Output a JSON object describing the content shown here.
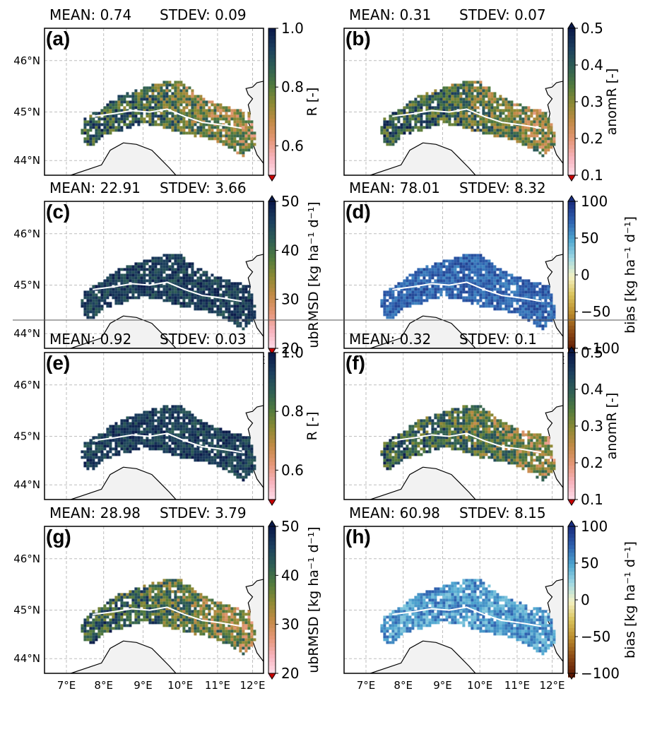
{
  "panels": [
    {
      "letter": "(a)",
      "mean_label": "MEAN: 0.74",
      "stdev_label": "STDEV: 0.09",
      "mean": 0.74,
      "stdev": 0.09,
      "cbar": "R",
      "tone": "mixed"
    },
    {
      "letter": "(b)",
      "mean_label": "MEAN: 0.31",
      "stdev_label": "STDEV: 0.07",
      "mean": 0.31,
      "stdev": 0.07,
      "cbar": "anomR",
      "tone": "mixed"
    },
    {
      "letter": "(c)",
      "mean_label": "MEAN: 22.91",
      "stdev_label": "STDEV: 3.66",
      "mean": 22.91,
      "stdev": 3.66,
      "cbar": "ubRMSD",
      "tone": "dark"
    },
    {
      "letter": "(d)",
      "mean_label": "MEAN: 78.01",
      "stdev_label": "STDEV: 8.32",
      "mean": 78.01,
      "stdev": 8.32,
      "cbar": "bias",
      "tone": "blue"
    },
    {
      "letter": "(e)",
      "mean_label": "MEAN: 0.92",
      "stdev_label": "STDEV: 0.03",
      "mean": 0.92,
      "stdev": 0.03,
      "cbar": "R",
      "tone": "dark"
    },
    {
      "letter": "(f)",
      "mean_label": "MEAN: 0.32",
      "stdev_label": "STDEV: 0.1",
      "mean": 0.32,
      "stdev": 0.1,
      "cbar": "anomR",
      "tone": "mixed"
    },
    {
      "letter": "(g)",
      "mean_label": "MEAN: 28.98",
      "stdev_label": "STDEV: 3.79",
      "mean": 28.98,
      "stdev": 3.79,
      "cbar": "ubRMSD",
      "tone": "mixed"
    },
    {
      "letter": "(h)",
      "mean_label": "MEAN: 60.98",
      "stdev_label": "STDEV: 8.15",
      "mean": 60.98,
      "stdev": 8.15,
      "cbar": "bias",
      "tone": "light"
    }
  ],
  "colorbars": {
    "R": {
      "label": "R [-]",
      "ticks": [
        "1.0",
        "0.8",
        "0.6"
      ],
      "range": [
        0.5,
        1.0
      ],
      "tick_values": [
        1.0,
        0.8,
        0.6
      ],
      "extend": "min"
    },
    "anomR": {
      "label": "anomR [-]",
      "ticks": [
        "0.5",
        "0.4",
        "0.3",
        "0.2",
        "0.1"
      ],
      "range": [
        0.1,
        0.5
      ],
      "tick_values": [
        0.5,
        0.4,
        0.3,
        0.2,
        0.1
      ],
      "extend": "both"
    },
    "ubRMSD": {
      "label": "ubRMSD [kg ha⁻¹ d⁻¹]",
      "ticks": [
        "50",
        "40",
        "30",
        "20"
      ],
      "range": [
        20,
        50
      ],
      "tick_values": [
        50,
        40,
        30,
        20
      ],
      "extend": "both"
    },
    "bias": {
      "label": "bias [kg ha⁻¹ d⁻¹]",
      "ticks": [
        "100",
        "50",
        "0",
        "−50",
        "−100"
      ],
      "range": [
        -100,
        100
      ],
      "tick_values": [
        100,
        50,
        0,
        -50,
        -100
      ],
      "extend": "both"
    }
  },
  "lat_labels": [
    "46°N",
    "45°N",
    "44°N"
  ],
  "lon_labels": [
    "7°E",
    "8°E",
    "9°E",
    "10°E",
    "11°E",
    "12°E"
  ],
  "colors": {
    "land_gray": "#f2f2f2",
    "gridline": "#bdbdbd",
    "extend_low": "#cc0000",
    "colormap_dark_to_light": [
      "#0b1a4a",
      "#1c3f5e",
      "#2e5e55",
      "#4f7a3e",
      "#8b8a34",
      "#c28a45",
      "#e59778",
      "#f7b4bf",
      "#ffe0ec"
    ],
    "bias_colormap": [
      "#1a2f80",
      "#2f62b0",
      "#4ea6d0",
      "#9fd8e3",
      "#f4f2c4",
      "#d9c25a",
      "#b98a2c",
      "#8c4a15",
      "#5e1a05"
    ]
  }
}
